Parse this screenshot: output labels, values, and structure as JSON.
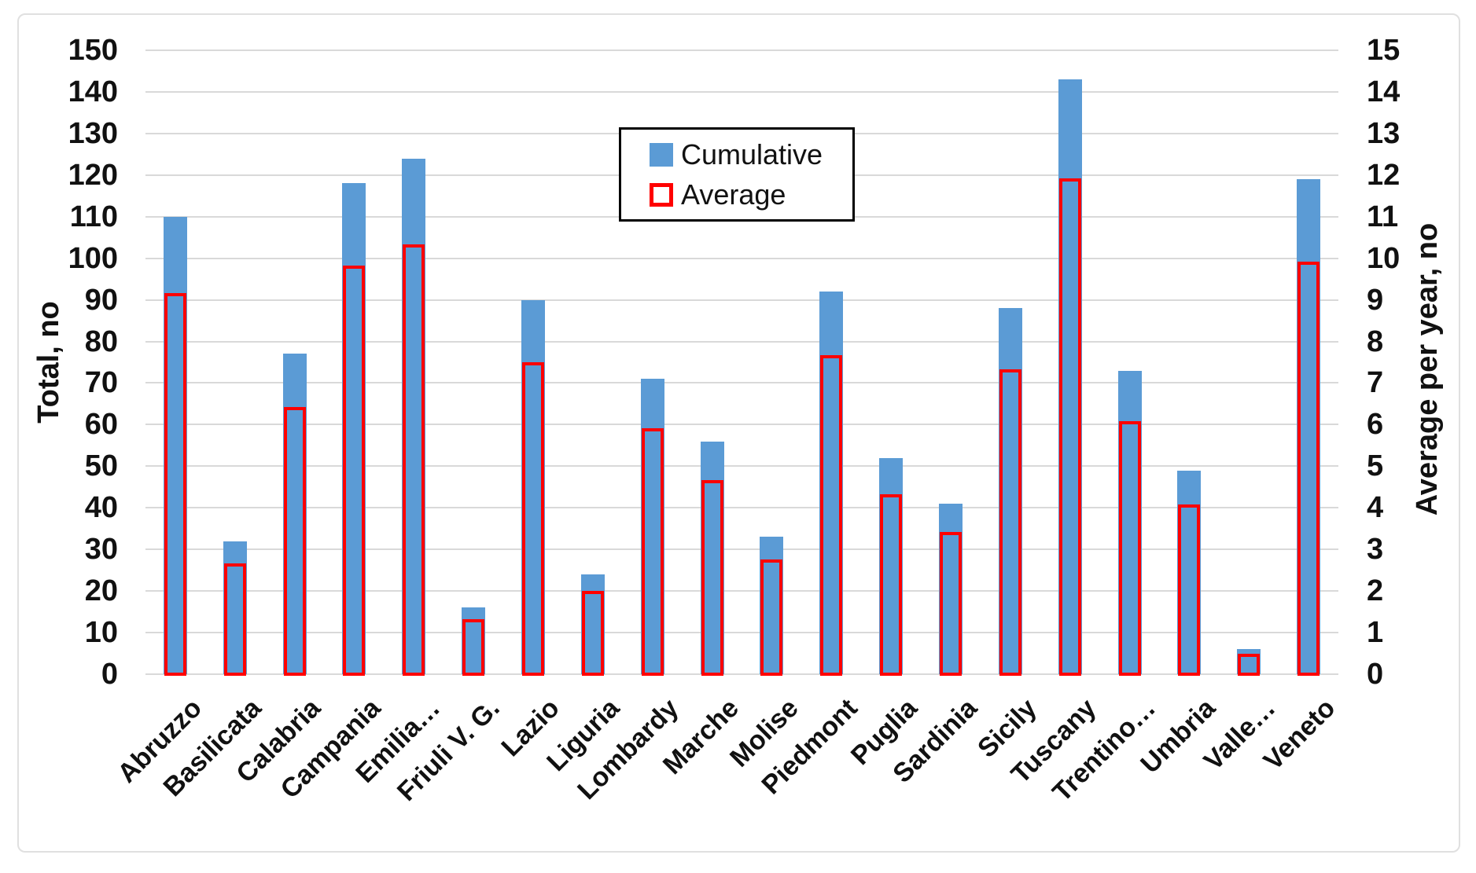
{
  "chart_data": {
    "type": "bar",
    "title": "",
    "categories": [
      "Abruzzo",
      "Basilicata",
      "Calabria",
      "Campania",
      "Emilia…",
      "Friuli V. G.",
      "Lazio",
      "Liguria",
      "Lombardy",
      "Marche",
      "Molise",
      "Piedmont",
      "Puglia",
      "Sardinia",
      "Sicily",
      "Tuscany",
      "Trentino…",
      "Umbria",
      "Valle…",
      "Veneto"
    ],
    "series": [
      {
        "name": "Cumulative",
        "axis": "left",
        "style": "filled",
        "color": "#5b9bd5",
        "values": [
          110,
          32,
          77,
          118,
          124,
          16,
          90,
          24,
          71,
          56,
          33,
          92,
          52,
          41,
          88,
          143,
          73,
          49,
          6,
          119
        ]
      },
      {
        "name": "Average",
        "axis": "right",
        "style": "outline",
        "color": "#ff0000",
        "values": [
          9.17,
          2.67,
          6.42,
          9.83,
          10.33,
          1.33,
          7.5,
          2.0,
          5.92,
          4.67,
          2.75,
          7.67,
          4.33,
          3.42,
          7.33,
          11.92,
          6.08,
          4.08,
          0.5,
          9.92
        ]
      }
    ],
    "left_axis": {
      "label": "Total, no",
      "min": 0,
      "max": 150,
      "step": 10
    },
    "right_axis": {
      "label": "Average per year, no",
      "min": 0,
      "max": 15,
      "step": 1
    },
    "legend": {
      "position": "top-center",
      "entries": [
        "Cumulative",
        "Average"
      ]
    },
    "grid": true,
    "gridline_color": "#d9d9d9"
  }
}
